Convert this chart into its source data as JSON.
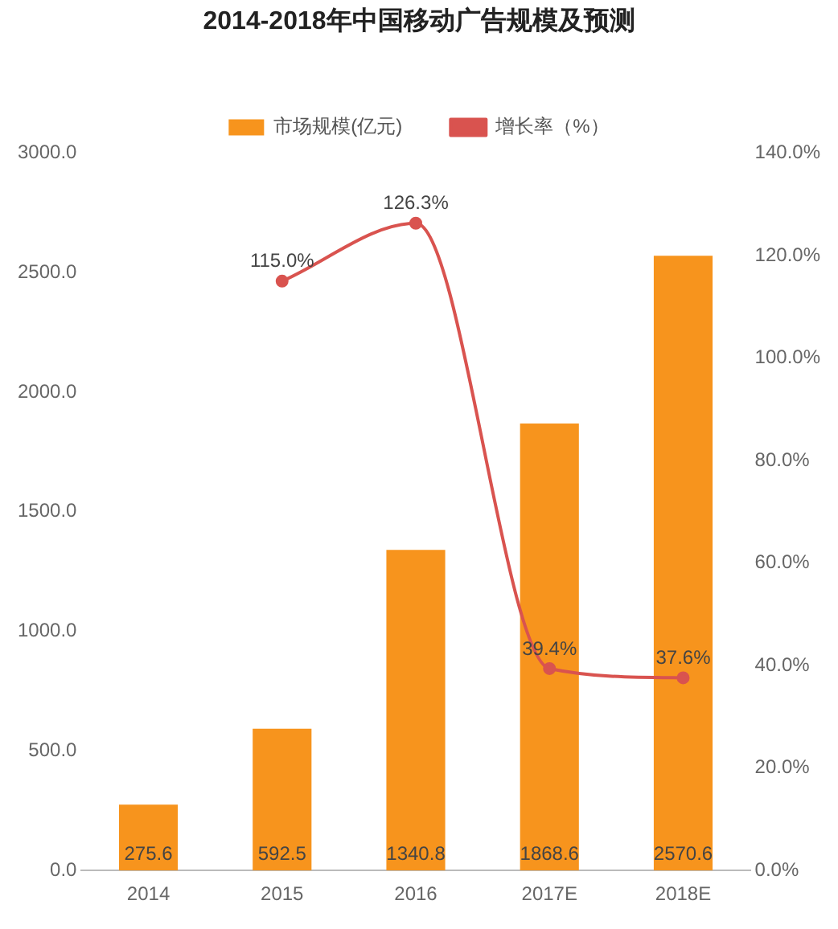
{
  "chart_data": {
    "type": "bar",
    "title": "2014-2018年中国移动广告规模及预测",
    "categories": [
      "2014",
      "2015",
      "2016",
      "2017E",
      "2018E"
    ],
    "series": [
      {
        "name": "市场规模(亿元)",
        "color": "#f7941d",
        "values": [
          275.6,
          592.5,
          1340.8,
          1868.6,
          2570.6
        ],
        "value_labels": [
          "275.6",
          "592.5",
          "1340.8",
          "1868.6",
          "2570.6"
        ]
      },
      {
        "name": "增长率（%）",
        "type": "line",
        "axis": "y2",
        "color": "#d9534f",
        "values": [
          null,
          115.0,
          126.3,
          39.4,
          37.6
        ],
        "value_labels": [
          null,
          "115.0%",
          "126.3%",
          "39.4%",
          "37.6%"
        ]
      }
    ],
    "ylim": [
      0,
      3000
    ],
    "yticks": [
      {
        "value": 0,
        "label": "0.0"
      },
      {
        "value": 500,
        "label": "500.0"
      },
      {
        "value": 1000,
        "label": "1000.0"
      },
      {
        "value": 1500,
        "label": "1500.0"
      },
      {
        "value": 2000,
        "label": "2000.0"
      },
      {
        "value": 2500,
        "label": "2500.0"
      },
      {
        "value": 3000,
        "label": "3000.0"
      }
    ],
    "y2lim": [
      0,
      140
    ],
    "y2ticks": [
      {
        "value": 0,
        "label": "0.0%"
      },
      {
        "value": 20,
        "label": "20.0%"
      },
      {
        "value": 40,
        "label": "40.0%"
      },
      {
        "value": 60,
        "label": "60.0%"
      },
      {
        "value": 80,
        "label": "80.0%"
      },
      {
        "value": 100,
        "label": "100.0%"
      },
      {
        "value": 120,
        "label": "120.0%"
      },
      {
        "value": 140,
        "label": "140.0%"
      }
    ],
    "legend": "top",
    "grid": false,
    "marker": "circle",
    "line_style": "solid"
  }
}
